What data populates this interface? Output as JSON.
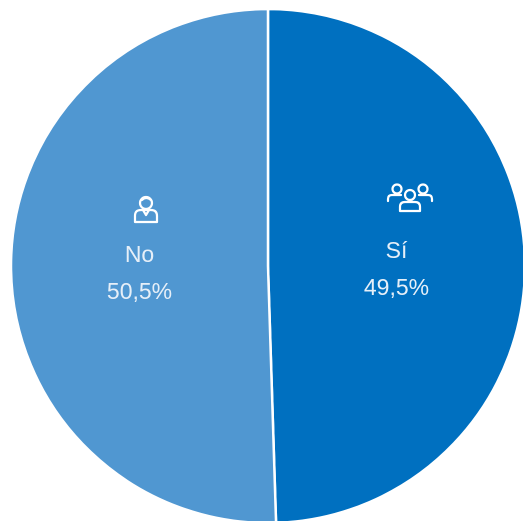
{
  "chart_data": {
    "type": "pie",
    "categories": [
      "Sí",
      "No"
    ],
    "values": [
      49.5,
      50.5
    ],
    "value_labels": [
      "49,5%",
      "50,5%"
    ],
    "colors": [
      "#0070c0",
      "#5097d1"
    ]
  }
}
